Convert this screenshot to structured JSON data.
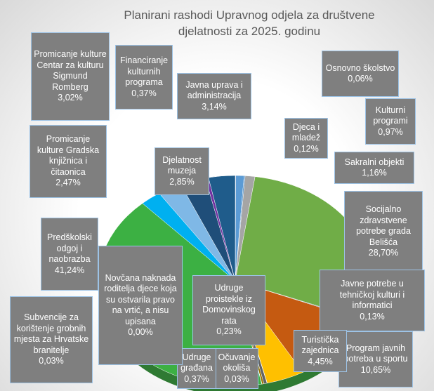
{
  "chart_data": {
    "type": "pie",
    "title": "Planirani rashodi Upravnog odjela za društvene djelatnosti za 2025. godinu",
    "categories": [
      "Osnovno školstvo",
      "Kulturni programi",
      "Djeca i mladež",
      "Sakralni objekti",
      "Socijalno zdravstvene potrebe grada Belišća",
      "Javne potrebe u tehničkoj kulturi i informatici",
      "Program javnih potreba u sportu",
      "Turistička zajednica",
      "Očuvanje okoliša",
      "Udruge građana",
      "Udruge proistekle iz Domovinskog rata",
      "Novčana naknada roditelja djece koja su ostvarila pravo na vrtić, a nisu upisana",
      "Subvencije za korištenje grobnih mjesta za Hrvatske branitelje",
      "Predškolski odgoj i naobrazba",
      "Promicanje kulture Gradska knjižnica i čitaonica",
      "Djelatnost muzeja",
      "Promicanje kulture Centar za kulturu Sigmund Romberg",
      "Financiranje kulturnih programa",
      "Javna uprava i administracija"
    ],
    "values": [
      0.06,
      0.97,
      0.12,
      1.16,
      28.7,
      0.13,
      10.65,
      4.45,
      0.03,
      0.37,
      0.23,
      0.0,
      0.03,
      41.24,
      2.47,
      2.85,
      3.02,
      0.37,
      3.14
    ],
    "value_labels": [
      "0,06%",
      "0,97%",
      "0,12%",
      "1,16%",
      "28,70%",
      "0,13%",
      "10,65%",
      "4,45%",
      "0,03%",
      "0,37%",
      "0,23%",
      "0,00%",
      "0,03%",
      "41,24%",
      "2,47%",
      "2,85%",
      "3,02%",
      "0,37%",
      "3,14%"
    ],
    "colors": [
      "#4472c4",
      "#5b9bd5",
      "#2e75b6",
      "#a5a5a5",
      "#70ad47",
      "#264478",
      "#c55a11",
      "#ffc000",
      "#9e480e",
      "#636363",
      "#997300",
      "#43682b",
      "#698ed0",
      "#3cb043",
      "#00b0f0",
      "#7fb8e6",
      "#1f4e79",
      "#7030a0",
      "#1f5c8b"
    ]
  }
}
